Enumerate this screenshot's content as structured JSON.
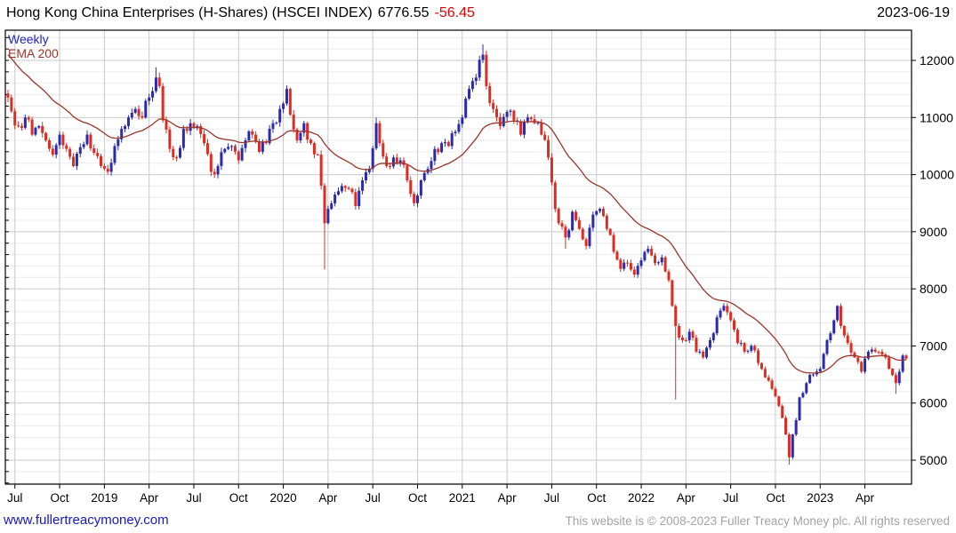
{
  "header": {
    "title": "Hong Kong China Enterprises (H-Shares) (HSCEI INDEX)",
    "price": "6776.55",
    "change": "-56.45",
    "date": "2023-06-19"
  },
  "legend": {
    "timeframe": "Weekly",
    "overlay": "EMA 200"
  },
  "footer": {
    "site_link": "www.fullertreacymoney.com",
    "copyright": "This website is © 2008-2023 Fuller Treacy Money plc. All rights reserved"
  },
  "colors": {
    "up_candle": "#2a2aae",
    "down_candle": "#dd2c22",
    "ema_line": "#9a352c",
    "grid_major": "#c9c9c9",
    "grid_minor": "#ececec",
    "axis": "#000000",
    "label_text": "#000000"
  },
  "chart_data": {
    "type": "candlestick",
    "timeframe": "weekly",
    "title": "Hong Kong China Enterprises (H-Shares) (HSCEI INDEX)",
    "last_close": 6776.55,
    "last_change": -56.45,
    "overlay": "EMA 200",
    "ylabel": "",
    "xlabel": "",
    "y_axis_side": "right",
    "ylim": [
      4580,
      12529
    ],
    "yticks_major": [
      5000,
      6000,
      7000,
      8000,
      9000,
      10000,
      11000,
      12000
    ],
    "ytick_minor_step": 200,
    "weeks_total": 262,
    "x_ticks": [
      {
        "week": 2,
        "label": "Jul"
      },
      {
        "week": 15,
        "label": "Oct"
      },
      {
        "week": 28,
        "label": "2019"
      },
      {
        "week": 41,
        "label": "Apr"
      },
      {
        "week": 54,
        "label": "Jul"
      },
      {
        "week": 67,
        "label": "Oct"
      },
      {
        "week": 80,
        "label": "2020"
      },
      {
        "week": 93,
        "label": "Apr"
      },
      {
        "week": 106,
        "label": "Jul"
      },
      {
        "week": 119,
        "label": "Oct"
      },
      {
        "week": 132,
        "label": "2021"
      },
      {
        "week": 145,
        "label": "Apr"
      },
      {
        "week": 158,
        "label": "Jul"
      },
      {
        "week": 171,
        "label": "Oct"
      },
      {
        "week": 184,
        "label": "2022"
      },
      {
        "week": 197,
        "label": "Apr"
      },
      {
        "week": 210,
        "label": "Jul"
      },
      {
        "week": 223,
        "label": "Oct"
      },
      {
        "week": 236,
        "label": "2023"
      },
      {
        "week": 249,
        "label": "Apr"
      }
    ],
    "first_open": 11420,
    "close_anchors": [
      [
        0,
        11350
      ],
      [
        1,
        11110
      ],
      [
        3,
        10850
      ],
      [
        5,
        11000
      ],
      [
        7,
        10700
      ],
      [
        9,
        10850
      ],
      [
        11,
        10600
      ],
      [
        13,
        10350
      ],
      [
        15,
        10700
      ],
      [
        17,
        10450
      ],
      [
        19,
        10150
      ],
      [
        21,
        10480
      ],
      [
        23,
        10700
      ],
      [
        25,
        10380
      ],
      [
        27,
        10150
      ],
      [
        29,
        10050
      ],
      [
        31,
        10500
      ],
      [
        33,
        10800
      ],
      [
        35,
        11000
      ],
      [
        37,
        11150
      ],
      [
        39,
        11000
      ],
      [
        41,
        11350
      ],
      [
        43,
        11700
      ],
      [
        44,
        11550
      ],
      [
        45,
        10950
      ],
      [
        47,
        10450
      ],
      [
        49,
        10300
      ],
      [
        51,
        10800
      ],
      [
        53,
        10900
      ],
      [
        55,
        10850
      ],
      [
        57,
        10550
      ],
      [
        59,
        10050
      ],
      [
        61,
        10150
      ],
      [
        63,
        10450
      ],
      [
        65,
        10500
      ],
      [
        67,
        10250
      ],
      [
        69,
        10600
      ],
      [
        71,
        10700
      ],
      [
        73,
        10400
      ],
      [
        75,
        10550
      ],
      [
        77,
        10900
      ],
      [
        79,
        11150
      ],
      [
        81,
        11500
      ],
      [
        82,
        11050
      ],
      [
        84,
        10600
      ],
      [
        86,
        10900
      ],
      [
        88,
        10550
      ],
      [
        90,
        10350
      ],
      [
        92,
        9150
      ],
      [
        93,
        9400
      ],
      [
        95,
        9650
      ],
      [
        97,
        9800
      ],
      [
        99,
        9750
      ],
      [
        101,
        9450
      ],
      [
        103,
        9900
      ],
      [
        105,
        10100
      ],
      [
        107,
        10900
      ],
      [
        108,
        10550
      ],
      [
        110,
        10150
      ],
      [
        112,
        10300
      ],
      [
        114,
        10250
      ],
      [
        116,
        9900
      ],
      [
        118,
        9500
      ],
      [
        120,
        9900
      ],
      [
        122,
        10100
      ],
      [
        124,
        10450
      ],
      [
        126,
        10550
      ],
      [
        128,
        10500
      ],
      [
        130,
        10750
      ],
      [
        132,
        11000
      ],
      [
        134,
        11500
      ],
      [
        136,
        11700
      ],
      [
        138,
        12100
      ],
      [
        139,
        11550
      ],
      [
        141,
        11150
      ],
      [
        143,
        10850
      ],
      [
        145,
        11100
      ],
      [
        147,
        10950
      ],
      [
        149,
        10700
      ],
      [
        151,
        11000
      ],
      [
        153,
        10900
      ],
      [
        155,
        10700
      ],
      [
        157,
        10300
      ],
      [
        159,
        9400
      ],
      [
        160,
        9150
      ],
      [
        162,
        8900
      ],
      [
        164,
        9350
      ],
      [
        166,
        9050
      ],
      [
        168,
        8750
      ],
      [
        170,
        9300
      ],
      [
        172,
        9400
      ],
      [
        174,
        9050
      ],
      [
        176,
        8650
      ],
      [
        178,
        8350
      ],
      [
        180,
        8450
      ],
      [
        182,
        8250
      ],
      [
        184,
        8500
      ],
      [
        186,
        8700
      ],
      [
        188,
        8450
      ],
      [
        190,
        8550
      ],
      [
        192,
        8150
      ],
      [
        193,
        7700
      ],
      [
        194,
        7350
      ],
      [
        196,
        7100
      ],
      [
        198,
        7250
      ],
      [
        200,
        6900
      ],
      [
        202,
        6800
      ],
      [
        204,
        7100
      ],
      [
        206,
        7500
      ],
      [
        208,
        7700
      ],
      [
        210,
        7450
      ],
      [
        212,
        7050
      ],
      [
        214,
        6900
      ],
      [
        216,
        7000
      ],
      [
        218,
        6700
      ],
      [
        220,
        6450
      ],
      [
        222,
        6250
      ],
      [
        224,
        5950
      ],
      [
        226,
        5450
      ],
      [
        227,
        5050
      ],
      [
        228,
        5450
      ],
      [
        229,
        5700
      ],
      [
        230,
        6100
      ],
      [
        232,
        6350
      ],
      [
        234,
        6500
      ],
      [
        236,
        6600
      ],
      [
        238,
        7100
      ],
      [
        240,
        7450
      ],
      [
        241,
        7700
      ],
      [
        242,
        7350
      ],
      [
        244,
        7050
      ],
      [
        246,
        6800
      ],
      [
        248,
        6550
      ],
      [
        250,
        6900
      ],
      [
        252,
        6900
      ],
      [
        254,
        6850
      ],
      [
        256,
        6600
      ],
      [
        258,
        6350
      ],
      [
        259,
        6550
      ],
      [
        260,
        6833
      ],
      [
        261,
        6776.55
      ]
    ],
    "wick_overrides": {
      "43": [
        11880,
        null
      ],
      "92": [
        null,
        8340
      ],
      "107": [
        11000,
        null
      ],
      "138": [
        12280,
        null
      ],
      "162": [
        null,
        8700
      ],
      "194": [
        null,
        6060
      ],
      "227": [
        null,
        4920
      ],
      "258": [
        null,
        6160
      ]
    }
  }
}
